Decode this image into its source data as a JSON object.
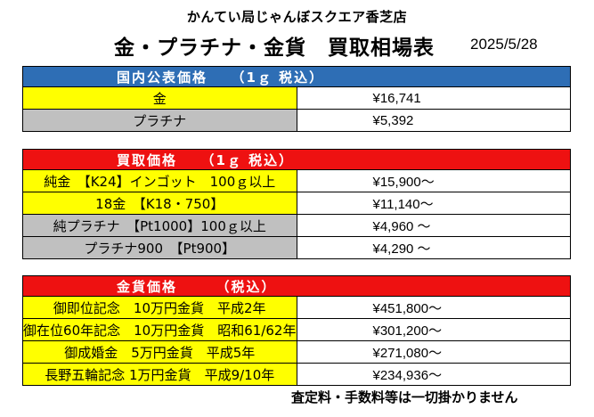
{
  "header": {
    "shop_name": "かんてい局じゃんぼスクエア香芝店",
    "title": "金・プラチナ・金貨　買取相場表",
    "date": "2025/5/28"
  },
  "sections": [
    {
      "title": "国内公表価格　　（1ｇ 税込）",
      "rows": [
        {
          "name": "金",
          "value": "¥16,741"
        },
        {
          "name": "プラチナ",
          "value": "¥5,392"
        }
      ]
    },
    {
      "title": "買取価格　　（1ｇ 税込）",
      "rows": [
        {
          "name": "純金　【K24】インゴット　100ｇ以上",
          "value": "¥15,900～"
        },
        {
          "name": "18金　【K18・750】",
          "value": "¥11,140～"
        },
        {
          "name": "純プラチナ　【Pt1000】100ｇ以上",
          "value": "¥4,960 ～"
        },
        {
          "name": "プラチナ900　【Pt900】",
          "value": "¥4,290 ～"
        }
      ]
    },
    {
      "title": "金貨価格　　　（税込）",
      "rows": [
        {
          "name": "御即位記念　10万円金貨　平成2年",
          "value": "¥451,800～"
        },
        {
          "name": "御在位60年記念　10万円金貨　昭和61/62年",
          "value": "¥301,200～"
        },
        {
          "name": "御成婚金　5万円金貨　平成5年",
          "value": "¥271,080～"
        },
        {
          "name": "長野五輪記念 1万円金貨　平成9/10年",
          "value": "¥234,936～"
        }
      ]
    }
  ],
  "footer": "査定料・手数料等は一切掛かりません",
  "colors": {
    "domestic_header": "#2e6eb5",
    "buy_header": "#ee1111",
    "yellow_row": "#ffff00",
    "gray_row": "#c0c0c0"
  }
}
